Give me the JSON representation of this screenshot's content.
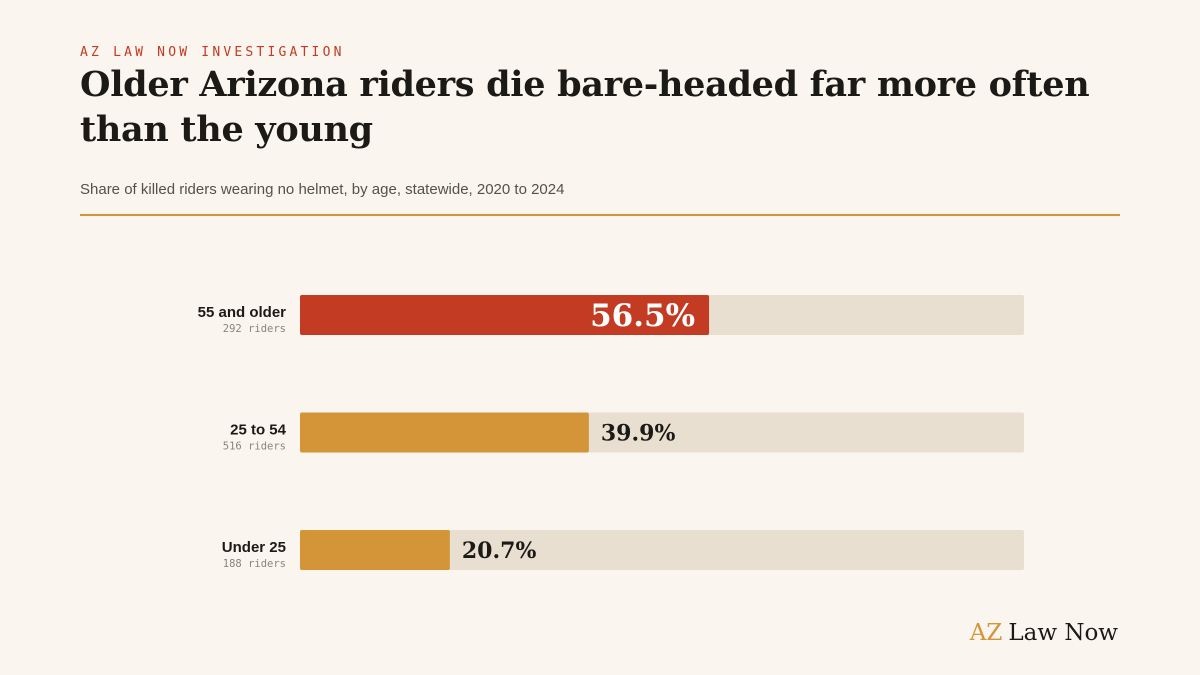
{
  "kicker": "AZ LAW NOW INVESTIGATION",
  "brand": {
    "accent": "AZ",
    "rest": "Law Now"
  },
  "colors": {
    "background": "#faf5ee",
    "highlight": "#c23b22",
    "bar": "#d49538",
    "track": "#e8dfd0",
    "text": "#1c1a17",
    "muted": "#8a857c"
  },
  "chart_data": {
    "type": "bar",
    "orientation": "horizontal",
    "title": "Older Arizona riders die bare-headed far more often than the young",
    "subtitle": "Share of killed riders wearing no helmet, by age, statewide, 2020 to 2024",
    "xlim": [
      0,
      100
    ],
    "grid": false,
    "categories": [
      "55 and older",
      "25 to 54",
      "Under 25"
    ],
    "sample_labels": [
      "292 riders",
      "516 riders",
      "188 riders"
    ],
    "values": [
      56.5,
      39.9,
      20.7
    ],
    "value_labels": [
      "56.5%",
      "39.9%",
      "20.7%"
    ],
    "highlight_index": 0
  }
}
